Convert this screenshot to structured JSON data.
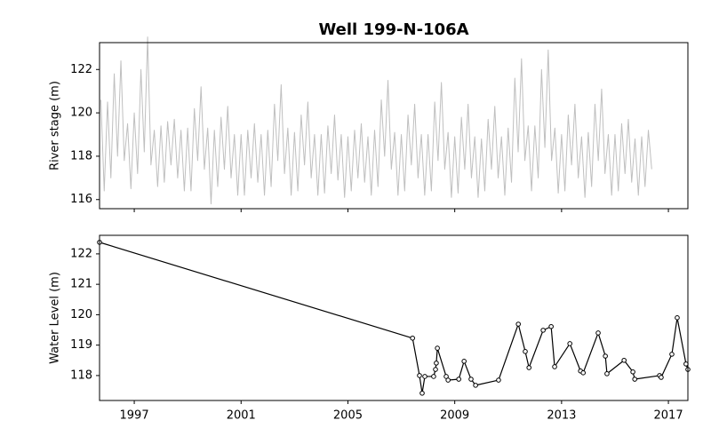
{
  "chart_data": [
    {
      "type": "line",
      "title": "Well 199-N-106A",
      "ylabel": "River stage (m)",
      "color": "#bfbfbf",
      "show_xtick_labels": false,
      "xlim": [
        1995.7,
        2017.73
      ],
      "xticks": [
        1997,
        2001,
        2005,
        2009,
        2013,
        2017
      ],
      "ylim": [
        115.58,
        123.24
      ],
      "yticks": [
        116,
        118,
        120,
        122
      ],
      "x": [
        1995.75,
        1995.875,
        1996,
        1996.125,
        1996.25,
        1996.375,
        1996.5,
        1996.625,
        1996.75,
        1996.875,
        1997,
        1997.125,
        1997.25,
        1997.375,
        1997.5,
        1997.625,
        1997.75,
        1997.875,
        1998,
        1998.125,
        1998.25,
        1998.375,
        1998.5,
        1998.625,
        1998.75,
        1998.875,
        1999,
        1999.125,
        1999.25,
        1999.375,
        1999.5,
        1999.625,
        1999.75,
        1999.875,
        2000,
        2000.125,
        2000.25,
        2000.375,
        2000.5,
        2000.625,
        2000.75,
        2000.875,
        2001,
        2001.125,
        2001.25,
        2001.375,
        2001.5,
        2001.625,
        2001.75,
        2001.875,
        2002,
        2002.125,
        2002.25,
        2002.375,
        2002.5,
        2002.625,
        2002.75,
        2002.875,
        2003,
        2003.125,
        2003.25,
        2003.375,
        2003.5,
        2003.625,
        2003.75,
        2003.875,
        2004,
        2004.125,
        2004.25,
        2004.375,
        2004.5,
        2004.625,
        2004.75,
        2004.875,
        2005,
        2005.125,
        2005.25,
        2005.375,
        2005.5,
        2005.625,
        2005.75,
        2005.875,
        2006,
        2006.125,
        2006.25,
        2006.375,
        2006.5,
        2006.625,
        2006.75,
        2006.875,
        2007,
        2007.125,
        2007.25,
        2007.375,
        2007.5,
        2007.625,
        2007.75,
        2007.875,
        2008,
        2008.125,
        2008.25,
        2008.375,
        2008.5,
        2008.625,
        2008.75,
        2008.875,
        2009,
        2009.125,
        2009.25,
        2009.375,
        2009.5,
        2009.625,
        2009.75,
        2009.875,
        2010,
        2010.125,
        2010.25,
        2010.375,
        2010.5,
        2010.625,
        2010.75,
        2010.875,
        2011,
        2011.125,
        2011.25,
        2011.375,
        2011.5,
        2011.625,
        2011.75,
        2011.875,
        2012,
        2012.125,
        2012.25,
        2012.375,
        2012.5,
        2012.625,
        2012.75,
        2012.875,
        2013,
        2013.125,
        2013.25,
        2013.375,
        2013.5,
        2013.625,
        2013.75,
        2013.875,
        2014,
        2014.125,
        2014.25,
        2014.375,
        2014.5,
        2014.625,
        2014.75,
        2014.875,
        2015,
        2015.125,
        2015.25,
        2015.375,
        2015.5,
        2015.625,
        2015.75,
        2015.875,
        2016,
        2016.125,
        2016.25,
        2016.375
      ],
      "values": [
        120.6,
        116.4,
        120.5,
        117.0,
        121.8,
        118.0,
        122.4,
        117.8,
        119.5,
        116.5,
        120.0,
        117.2,
        122.0,
        118.2,
        123.5,
        117.6,
        119.2,
        116.6,
        119.4,
        116.8,
        119.6,
        117.6,
        119.7,
        117.0,
        119.2,
        116.4,
        119.3,
        116.4,
        120.2,
        117.8,
        121.2,
        117.4,
        119.3,
        115.8,
        119.2,
        116.6,
        119.8,
        117.4,
        120.3,
        117.0,
        119.0,
        116.2,
        119.0,
        116.2,
        119.2,
        117.0,
        119.5,
        116.8,
        119.0,
        116.2,
        119.2,
        116.6,
        120.4,
        117.8,
        121.3,
        117.2,
        119.3,
        116.2,
        119.1,
        116.4,
        119.9,
        117.6,
        120.5,
        117.0,
        119.0,
        116.2,
        119.0,
        116.3,
        119.4,
        117.2,
        119.9,
        116.9,
        119.0,
        116.1,
        118.9,
        116.4,
        119.2,
        117.0,
        119.5,
        116.8,
        118.9,
        116.2,
        119.2,
        116.6,
        120.6,
        118.0,
        121.5,
        117.4,
        119.1,
        116.2,
        119.0,
        116.4,
        119.9,
        117.6,
        120.4,
        117.0,
        119.0,
        116.2,
        119.0,
        116.4,
        120.5,
        117.8,
        121.4,
        117.4,
        119.1,
        116.1,
        118.9,
        116.3,
        119.8,
        117.4,
        120.4,
        117.0,
        118.9,
        116.1,
        118.8,
        116.4,
        119.7,
        117.4,
        120.3,
        117.0,
        118.9,
        116.2,
        119.3,
        116.8,
        121.6,
        118.2,
        122.5,
        117.8,
        119.4,
        116.4,
        119.4,
        117.0,
        122.0,
        118.4,
        122.9,
        117.8,
        119.3,
        116.3,
        119.0,
        116.4,
        119.9,
        117.6,
        120.4,
        117.0,
        118.9,
        116.1,
        119.1,
        116.6,
        120.4,
        117.8,
        121.1,
        117.2,
        119.0,
        116.2,
        119.0,
        116.4,
        119.5,
        117.2,
        119.7,
        116.8,
        118.8,
        116.2,
        118.9,
        116.6,
        119.2,
        117.4
      ]
    },
    {
      "type": "line",
      "ylabel": "Water Level (m)",
      "color": "#000000",
      "markers": true,
      "show_xtick_labels": true,
      "xlim": [
        1995.7,
        2017.73
      ],
      "xticks": [
        1997,
        2001,
        2005,
        2009,
        2013,
        2017
      ],
      "ylim": [
        117.18,
        122.61
      ],
      "yticks": [
        118,
        119,
        120,
        121,
        122
      ],
      "x": [
        1995.7,
        2007.42,
        2007.68,
        2007.78,
        2007.88,
        2008.21,
        2008.28,
        2008.31,
        2008.35,
        2008.68,
        2008.75,
        2009.15,
        2009.35,
        2009.61,
        2009.78,
        2010.64,
        2011.38,
        2011.64,
        2011.78,
        2012.31,
        2012.61,
        2012.74,
        2013.31,
        2013.71,
        2013.81,
        2014.37,
        2014.64,
        2014.7,
        2015.34,
        2015.67,
        2015.74,
        2016.67,
        2016.73,
        2017.13,
        2017.33,
        2017.66,
        2017.73
      ],
      "values": [
        122.38,
        119.23,
        118.0,
        117.42,
        117.97,
        117.97,
        118.2,
        118.41,
        118.9,
        117.97,
        117.85,
        117.88,
        118.47,
        117.88,
        117.68,
        117.85,
        119.69,
        118.79,
        118.26,
        119.49,
        119.61,
        118.29,
        119.05,
        118.15,
        118.09,
        119.4,
        118.64,
        118.06,
        118.5,
        118.12,
        117.88,
        118.0,
        117.94,
        118.7,
        119.9,
        118.38,
        118.2
      ]
    }
  ]
}
